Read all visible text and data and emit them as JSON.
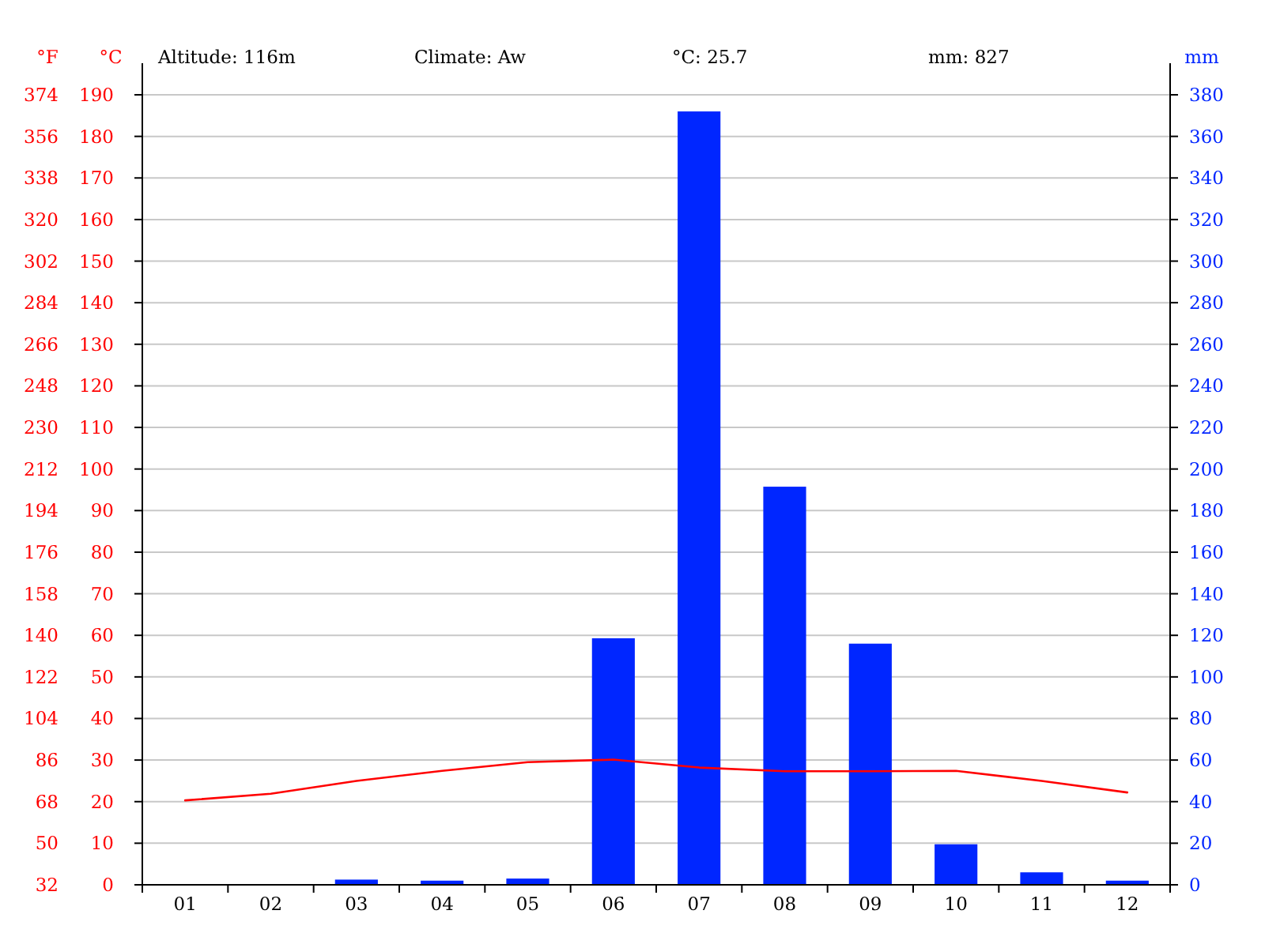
{
  "chart_data": {
    "type": "bar",
    "categories": [
      "01",
      "02",
      "03",
      "04",
      "05",
      "06",
      "07",
      "08",
      "09",
      "10",
      "11",
      "12"
    ],
    "series": [
      {
        "axis": "y2",
        "color": "#0026ff",
        "values": [
          0,
          0,
          2.5,
          2,
          3,
          118.6,
          372,
          191.5,
          116,
          19.5,
          6,
          2
        ]
      },
      {
        "type": "line",
        "axis": "y",
        "color": "#ff0000",
        "values": [
          20.3,
          21.9,
          25,
          27.4,
          29.5,
          30.1,
          28.2,
          27.3,
          27.3,
          27.4,
          25,
          22.2
        ]
      }
    ],
    "ylabel": "°C",
    "y2label": "mm",
    "y3label": "°F",
    "ylim": [
      0,
      190
    ],
    "yticks": [
      0,
      10,
      20,
      30,
      40,
      50,
      60,
      70,
      80,
      90,
      100,
      110,
      120,
      130,
      140,
      150,
      160,
      170,
      180,
      190
    ],
    "y2lim": [
      0,
      380
    ],
    "y2ticks": [
      0,
      20,
      40,
      60,
      80,
      100,
      120,
      140,
      160,
      180,
      200,
      220,
      240,
      260,
      280,
      300,
      320,
      340,
      360,
      380
    ],
    "y3lim": [
      32,
      374
    ],
    "y3ticks": [
      32,
      50,
      68,
      86,
      104,
      122,
      140,
      158,
      176,
      194,
      212,
      230,
      248,
      266,
      284,
      302,
      320,
      338,
      356,
      374
    ],
    "grid": "y",
    "annotations": [
      "Altitude: 116m",
      "Climate: Aw",
      "°C: 25.7",
      "mm: 827"
    ]
  }
}
